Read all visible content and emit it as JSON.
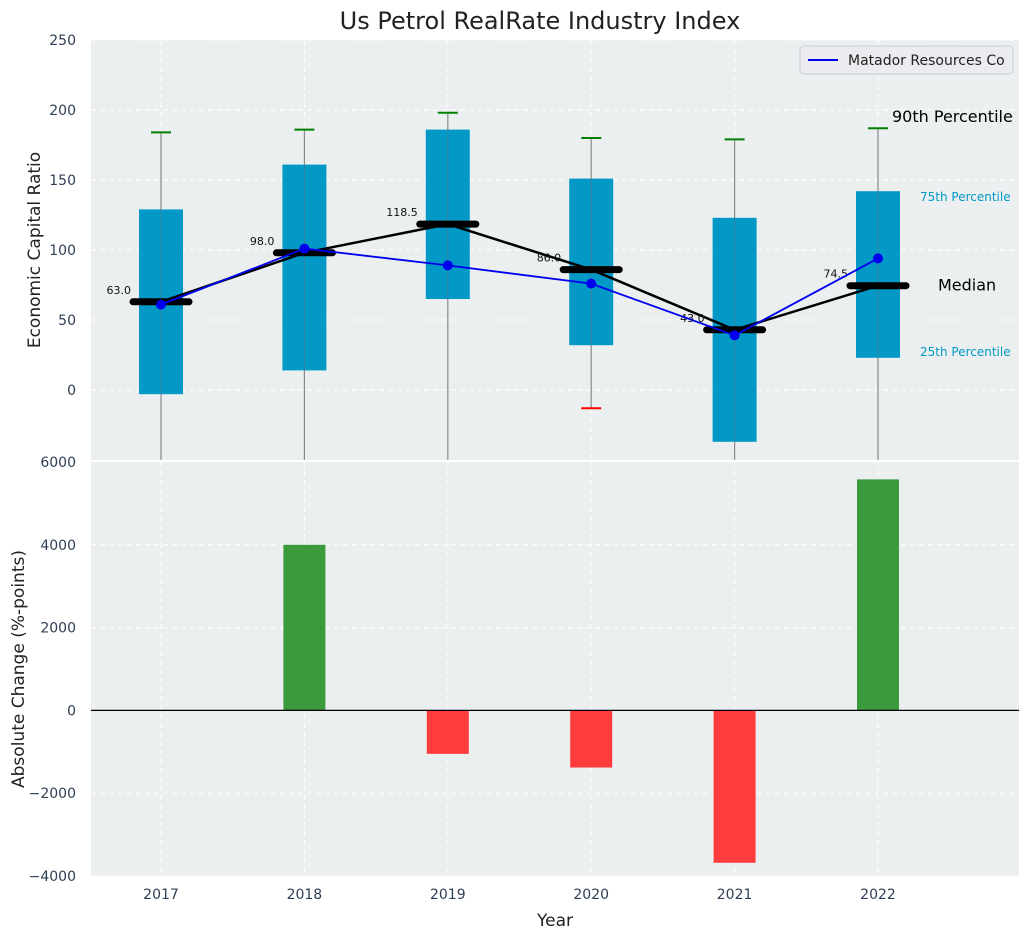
{
  "chart_data": [
    {
      "type": "box",
      "title": "Us Petrol RealRate Industry Index",
      "ylabel": "Economic Capital Ratio",
      "ylim": [
        -50,
        250
      ],
      "yticks": [
        "0",
        "50",
        "100",
        "150",
        "200",
        "250"
      ],
      "categories": [
        "2017",
        "2018",
        "2019",
        "2020",
        "2021",
        "2022"
      ],
      "grid": true,
      "percentiles": {
        "p90": [
          184,
          186,
          198,
          180,
          179,
          187
        ],
        "p75": [
          129,
          161,
          186,
          151,
          123,
          142
        ],
        "median": [
          63.0,
          98.0,
          118.5,
          86.0,
          43.0,
          74.5
        ],
        "p25": [
          -3,
          14,
          65,
          32,
          -37,
          23
        ],
        "p10": [
          -50,
          -50,
          -50,
          -13,
          -50,
          -50
        ]
      },
      "median_labels": [
        "63.0",
        "98.0",
        "118.5",
        "86.0",
        "43.0",
        "74.5"
      ],
      "series": [
        {
          "name": "Matador Resources Co",
          "values": [
            61,
            101,
            89,
            76,
            39,
            94
          ],
          "color": "#0000ee"
        }
      ],
      "legend": "top-right",
      "annotations": {
        "p90": "90th Percentile",
        "p75": "75th Percentile",
        "median": "Median",
        "p25": "25th Percentile"
      },
      "colors": {
        "box": "#0399c6",
        "median": "#000000",
        "whisker_top": "#008000",
        "whisker_bottom": "#ff0000",
        "background": "#ebeff0"
      }
    },
    {
      "type": "bar",
      "xlabel": "Year",
      "ylabel": "Absolute Change (%-points)",
      "ylim": [
        -4000,
        6000
      ],
      "yticks": [
        "−4000",
        "−2000",
        "0",
        "2000",
        "4000",
        "6000"
      ],
      "categories": [
        "2017",
        "2018",
        "2019",
        "2020",
        "2021",
        "2022"
      ],
      "values": [
        0,
        4000,
        -1050,
        -1380,
        -3680,
        5580
      ],
      "colors": {
        "positive": "#3a9a3c",
        "negative": "#fe3c3d"
      },
      "grid": true
    }
  ]
}
